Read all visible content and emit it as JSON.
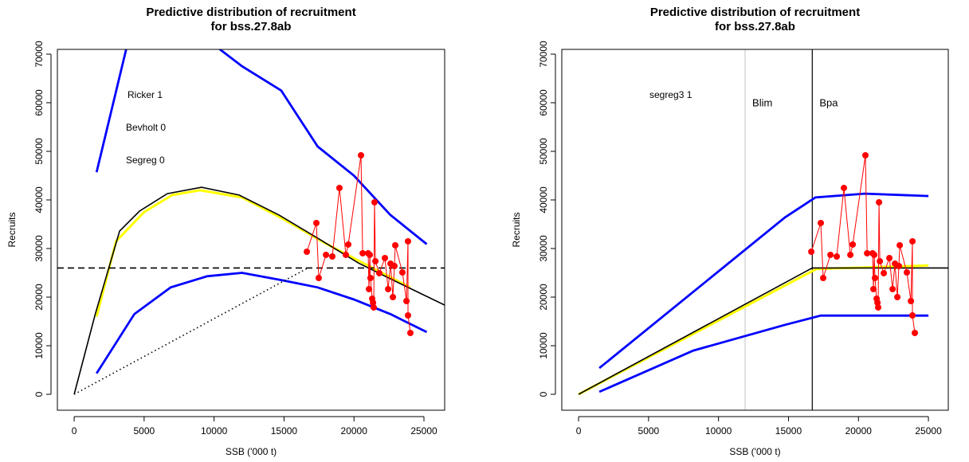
{
  "chart_data": [
    {
      "type": "line",
      "title": [
        "Predictive distribution of recruitment",
        "for bss.27.8ab"
      ],
      "xlabel": "SSB ('000 t)",
      "ylabel": "Recruits",
      "xlim": [
        -1200,
        26480
      ],
      "ylim": [
        -3280,
        70980
      ],
      "xticks": [
        0,
        5000,
        10000,
        15000,
        20000,
        25000
      ],
      "yticks": [
        0,
        10000,
        20000,
        30000,
        40000,
        50000,
        60000,
        70000
      ],
      "annotations": [
        "Ricker 1",
        "Bevholt 0",
        "Segreg 0"
      ],
      "series": [
        {
          "style": "line",
          "color": "#ffff00",
          "x": [
            1600,
            3000,
            5000,
            7000,
            9000,
            12000,
            15000,
            18000,
            21000,
            24000
          ],
          "values": [
            16000,
            31500,
            37500,
            41000,
            42000,
            40500,
            36000,
            31000,
            26500,
            22000
          ]
        },
        {
          "style": "line",
          "color": "#000000",
          "x": [
            0,
            1500,
            3250,
            4670,
            6660,
            9110,
            11790,
            14640,
            17480,
            20330,
            23180,
            26480
          ],
          "values": [
            0,
            16400,
            33600,
            37700,
            41300,
            42600,
            41000,
            36900,
            32000,
            27000,
            22950,
            18360
          ]
        },
        {
          "style": "band",
          "color": "#0000ff",
          "x": [
            1600,
            4300,
            6900,
            9500,
            12000,
            14800,
            17400,
            20000,
            22600,
            25200
          ],
          "values": [
            45700,
            78000,
            80000,
            73000,
            67500,
            62500,
            51000,
            45000,
            36900,
            30900
          ]
        },
        {
          "style": "band",
          "color": "#0000ff",
          "x": [
            1600,
            4300,
            6900,
            9500,
            12000,
            14800,
            17400,
            20000,
            22600,
            25200
          ],
          "values": [
            4300,
            16500,
            22000,
            24300,
            25000,
            23500,
            22000,
            19500,
            16500,
            12800
          ]
        },
        {
          "style": "dashed",
          "color": "#000000",
          "x": [
            -1200,
            26480
          ],
          "values": [
            26000,
            26000
          ]
        },
        {
          "style": "dotted",
          "color": "#000000",
          "x": [
            0,
            16700
          ],
          "values": [
            0,
            26000
          ]
        },
        {
          "style": "points",
          "color": "#ff0000",
          "x": [
            16630,
            17310,
            17480,
            18000,
            18450,
            18960,
            19420,
            19590,
            20500,
            20620,
            21010,
            21070,
            21130,
            21180,
            21300,
            21360,
            21410,
            21470,
            21530,
            21810,
            22210,
            22440,
            22610,
            22780,
            22890,
            22950,
            23460,
            23750,
            23860,
            23860,
            24030
          ],
          "values": [
            29340,
            35250,
            23930,
            28690,
            28360,
            42460,
            28690,
            30820,
            49180,
            29020,
            29020,
            21640,
            28690,
            23930,
            19670,
            18850,
            17870,
            39510,
            27380,
            24920,
            28030,
            21640,
            26890,
            20000,
            26390,
            30660,
            25080,
            19180,
            31480,
            16230,
            12620
          ]
        }
      ]
    },
    {
      "type": "line",
      "title": [
        "Predictive distribution of recruitment",
        "for bss.27.8ab"
      ],
      "xlabel": "SSB ('000 t)",
      "ylabel": "Recruits",
      "xlim": [
        -1200,
        26420
      ],
      "ylim": [
        -3280,
        70980
      ],
      "xticks": [
        0,
        5000,
        10000,
        15000,
        20000,
        25000
      ],
      "yticks": [
        0,
        10000,
        20000,
        30000,
        40000,
        50000,
        60000,
        70000
      ],
      "annotations": [
        "segreg3 1"
      ],
      "vlines": [
        {
          "name": "Blim",
          "value": 11900,
          "color": "#cccccc"
        },
        {
          "name": "Bpa",
          "value": 16700,
          "color": "#000000"
        }
      ],
      "series": [
        {
          "style": "line",
          "color": "#ffff00",
          "x": [
            0,
            17000,
            25000
          ],
          "values": [
            0,
            25800,
            26500
          ]
        },
        {
          "style": "line",
          "color": "#000000",
          "x": [
            0,
            16700,
            26420
          ],
          "values": [
            0,
            26000,
            26000
          ]
        },
        {
          "style": "band",
          "color": "#0000ff",
          "x": [
            1480,
            14750,
            16920,
            20450,
            25000
          ],
          "values": [
            5400,
            36400,
            40500,
            41300,
            40800
          ]
        },
        {
          "style": "band",
          "color": "#0000ff",
          "x": [
            1480,
            8200,
            14750,
            17310,
            25000
          ],
          "values": [
            500,
            9000,
            14300,
            16200,
            16200
          ]
        },
        {
          "style": "points",
          "color": "#ff0000",
          "x": [
            16630,
            17310,
            17480,
            18000,
            18450,
            18960,
            19420,
            19590,
            20500,
            20620,
            21010,
            21070,
            21130,
            21180,
            21300,
            21360,
            21410,
            21470,
            21530,
            21810,
            22210,
            22440,
            22610,
            22780,
            22890,
            22950,
            23460,
            23750,
            23860,
            23860,
            24030
          ],
          "values": [
            29340,
            35250,
            23930,
            28690,
            28360,
            42460,
            28690,
            30820,
            49180,
            29020,
            29020,
            21640,
            28690,
            23930,
            19670,
            18850,
            17870,
            39510,
            27380,
            24920,
            28030,
            21640,
            26890,
            20000,
            26390,
            30660,
            25080,
            19180,
            31480,
            16230,
            12620
          ]
        }
      ]
    }
  ]
}
